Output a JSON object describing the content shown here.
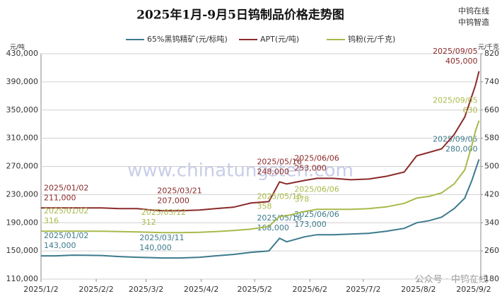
{
  "chart_data": {
    "type": "line",
    "title": "2025年1月-9月5日钨制品价格走势图",
    "brand_labels": [
      "中钨在线",
      "中钨智造"
    ],
    "watermark": "www.chinatungsten.com",
    "footer_watermark": "公众号 · 中钨在线",
    "y_label": "元/吨",
    "y2_label": "元/千克",
    "x": [
      "2025/01/02",
      "2025/01/10",
      "2025/01/20",
      "2025/02/05",
      "2025/02/15",
      "2025/02/25",
      "2025/03/05",
      "2025/03/11",
      "2025/03/12",
      "2025/03/21",
      "2025/04/01",
      "2025/04/10",
      "2025/04/20",
      "2025/04/30",
      "2025/05/10",
      "2025/05/16",
      "2025/05/20",
      "2025/05/30",
      "2025/06/06",
      "2025/06/15",
      "2025/06/25",
      "2025/07/05",
      "2025/07/15",
      "2025/07/25",
      "2025/08/01",
      "2025/08/08",
      "2025/08/15",
      "2025/08/22",
      "2025/08/28",
      "2025/09/01",
      "2025/09/03",
      "2025/09/05"
    ],
    "xlim": [
      "2025/1/2",
      "2025/9/6"
    ],
    "xticks": [
      "2025/1/2",
      "2025/2/2",
      "2025/3/2",
      "2025/4/2",
      "2025/5/2",
      "2025/6/2",
      "2025/7/2",
      "2025/8/2",
      "2025/9/2"
    ],
    "ylim": [
      110000,
      430000
    ],
    "yticks": [
      {
        "value": 110000,
        "label": "110,000"
      },
      {
        "value": 150000,
        "label": "150,000"
      },
      {
        "value": 190000,
        "label": "190,000"
      },
      {
        "value": 230000,
        "label": "230,000"
      },
      {
        "value": 270000,
        "label": "270,000"
      },
      {
        "value": 310000,
        "label": "310,000"
      },
      {
        "value": 350000,
        "label": "350,000"
      },
      {
        "value": 390000,
        "label": "390,000"
      },
      {
        "value": 430000,
        "label": "430,000"
      }
    ],
    "y2lim": [
      180,
      820
    ],
    "y2ticks": [
      180,
      260,
      340,
      420,
      500,
      580,
      660,
      740,
      820
    ],
    "grid": true,
    "legend": "top",
    "series": [
      {
        "name": "65%黑钨精矿(元/标吨)",
        "color": "#3d7a8c",
        "values": [
          143000,
          143000,
          144000,
          143500,
          142000,
          141000,
          140500,
          140000,
          140000,
          140000,
          141000,
          143000,
          145000,
          148000,
          150000,
          168000,
          163000,
          170000,
          173000,
          173000,
          174000,
          175000,
          178000,
          182000,
          190000,
          193000,
          198000,
          210000,
          225000,
          250000,
          265000,
          280000
        ],
        "annotations": [
          {
            "date": "2025/01/02",
            "label": "143,000"
          },
          {
            "date": "2025/03/11",
            "label": "140,000"
          },
          {
            "date": "2025/05/16",
            "label": "168,000"
          },
          {
            "date": "2025/06/06",
            "label": "173,000"
          },
          {
            "date": "2025/09/05",
            "label": "280,000"
          }
        ]
      },
      {
        "name": "APT(元/吨)",
        "color": "#8b2a2a",
        "values": [
          211000,
          211000,
          211000,
          211000,
          210000,
          210000,
          208000,
          207000,
          207000,
          207000,
          208000,
          210000,
          212000,
          218000,
          220000,
          248000,
          245000,
          250000,
          253000,
          253000,
          251000,
          252000,
          256000,
          262000,
          285000,
          290000,
          295000,
          315000,
          340000,
          370000,
          385000,
          405000
        ],
        "annotations": [
          {
            "date": "2025/01/02",
            "label": "211,000"
          },
          {
            "date": "2025/03/21",
            "label": "207,000"
          },
          {
            "date": "2025/05/16",
            "label": "248,000"
          },
          {
            "date": "2025/06/06",
            "label": "253,000"
          },
          {
            "date": "2025/09/05",
            "label": "405,000"
          }
        ]
      },
      {
        "name": "钨粉(元/千克)",
        "color": "#a9b94a",
        "axis": "y2",
        "values": [
          316,
          316,
          316,
          316,
          315,
          314,
          313,
          312,
          312,
          312,
          313,
          315,
          318,
          322,
          330,
          358,
          360,
          372,
          378,
          378,
          378,
          380,
          385,
          395,
          410,
          415,
          425,
          450,
          490,
          560,
          600,
          630
        ],
        "annotations": [
          {
            "date": "2025/01/02",
            "label": "316"
          },
          {
            "date": "2025/03/12",
            "label": "312"
          },
          {
            "date": "2025/05/16",
            "label": "358"
          },
          {
            "date": "2025/06/06",
            "label": "378"
          },
          {
            "date": "2025/09/05",
            "label": "630"
          }
        ]
      }
    ]
  }
}
